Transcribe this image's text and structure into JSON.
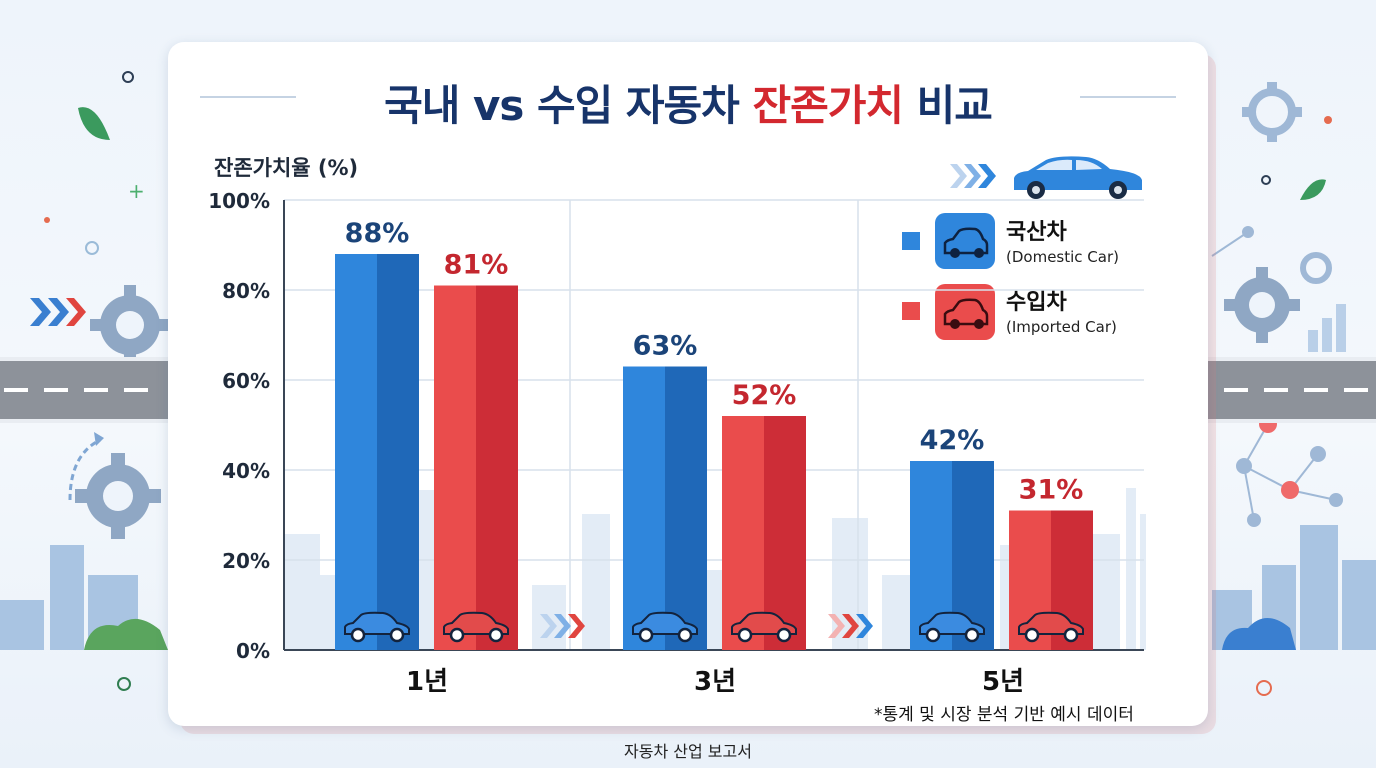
{
  "title": {
    "part1": "국내 vs 수입 자동차 ",
    "part2": "잔존가치",
    "part3": " 비교"
  },
  "colors": {
    "domestic": "#2f86dc",
    "domestic_dark": "#1f68b8",
    "imported": "#ea4c4c",
    "imported_dark": "#cd2d37",
    "domestic_label": "#1b4479",
    "imported_label": "#c4272f"
  },
  "legend": [
    {
      "label": "국산차",
      "sub": "(Domestic Car)",
      "color": "#2f86dc",
      "icon": "car-icon"
    },
    {
      "label": "수입차",
      "sub": "(Imported Car)",
      "color": "#ea4c4c",
      "icon": "car-icon"
    }
  ],
  "chart_data": {
    "type": "bar",
    "title": "국내 vs 수입 자동차 잔존가치 비교",
    "ylabel": "잔존가치율 (%)",
    "xlabel": "",
    "categories": [
      "1년",
      "3년",
      "5년"
    ],
    "series": [
      {
        "name": "국산차",
        "values": [
          88,
          63,
          42
        ],
        "labels": [
          "88%",
          "63%",
          "42%"
        ]
      },
      {
        "name": "수입차",
        "values": [
          81,
          52,
          31
        ],
        "labels": [
          "81%",
          "52%",
          "31%"
        ]
      }
    ],
    "ylim": [
      0,
      100
    ],
    "yticks": [
      "0%",
      "20%",
      "40%",
      "60%",
      "80%",
      "100%"
    ],
    "ytick_values": [
      0,
      20,
      40,
      60,
      80,
      100
    ],
    "grid": true,
    "legend_position": "top-right"
  },
  "footnote": "*통계 및 시장 분석 기반 예시 데이터",
  "footer": "자동차 산업 보고서"
}
